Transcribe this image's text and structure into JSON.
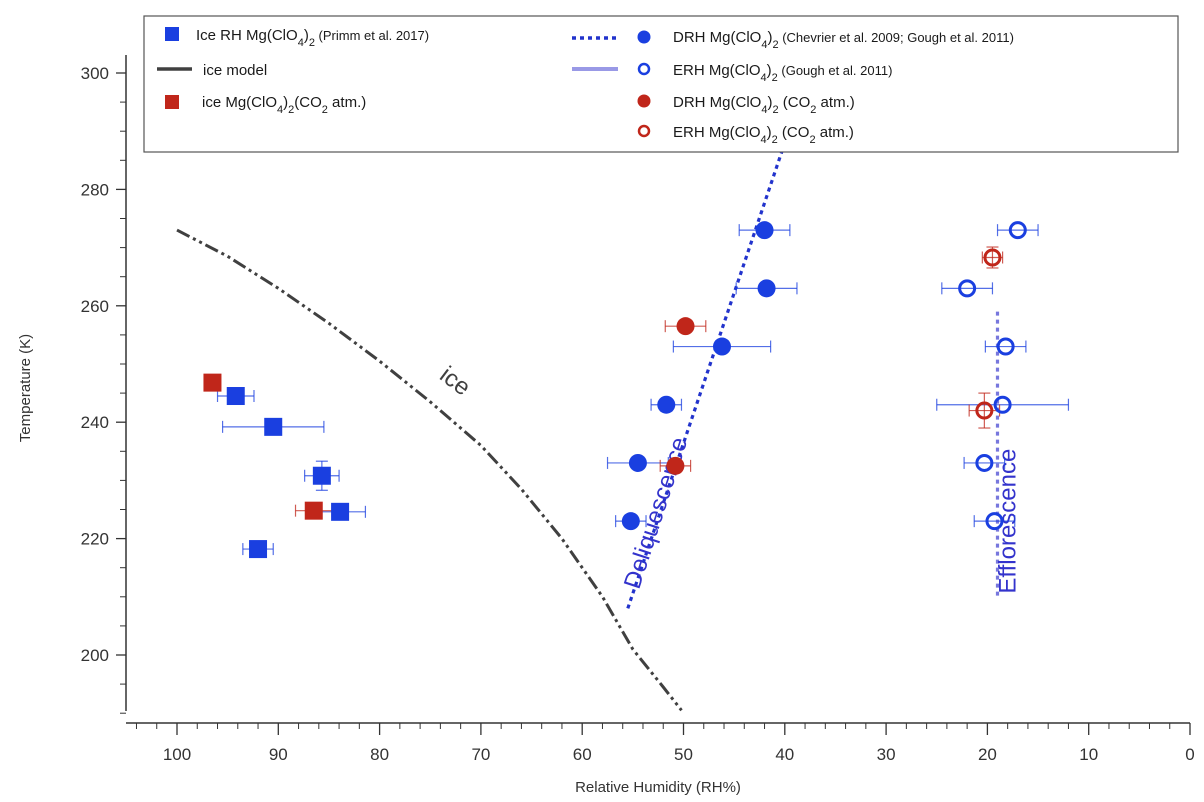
{
  "chart_data": {
    "type": "scatter",
    "xlabel": "Relative Humidity (RH%)",
    "ylabel": "Temperature (K)",
    "xlim": [
      105,
      0
    ],
    "ylim": [
      190,
      305
    ],
    "x_reversed": true,
    "x_ticks": [
      "100",
      "90",
      "80",
      "70",
      "60",
      "50",
      "40",
      "30",
      "20",
      "10",
      "0"
    ],
    "x_tick_values": [
      100,
      90,
      80,
      70,
      60,
      50,
      40,
      30,
      20,
      10,
      0
    ],
    "y_ticks": [
      "200",
      "220",
      "240",
      "260",
      "280",
      "300"
    ],
    "y_tick_values": [
      200,
      220,
      240,
      260,
      280,
      300
    ],
    "grid": false,
    "legend_placement": "top",
    "annotations": [
      {
        "text": "ice",
        "x": 73,
        "y": 246,
        "rotation": 37,
        "color": "#404040"
      },
      {
        "text": "Deliquescence",
        "x": 52,
        "y": 224,
        "rotation": -72,
        "color": "#3333cc"
      },
      {
        "text": "Efflorescence",
        "x": 17.2,
        "y": 223,
        "rotation": -90,
        "color": "#3333cc"
      }
    ],
    "series": [
      {
        "name": "Ice RH Mg(ClO4)2 (Primm et al. 2017)",
        "legend_main": "Ice RH Mg(ClO",
        "legend_rest": ")",
        "legend_ref": "(Primm et al. 2017)",
        "marker": "square",
        "filled": true,
        "color": "#1a3fe0",
        "points": [
          {
            "x": 94.2,
            "y": 244.5,
            "xerr": 1.8,
            "yerr": 0
          },
          {
            "x": 90.5,
            "y": 239.2,
            "xerr": 5,
            "yerr": 0
          },
          {
            "x": 85.7,
            "y": 230.8,
            "xerr": 1.7,
            "yerr": 2.5
          },
          {
            "x": 83.9,
            "y": 224.6,
            "xerr": 2.5,
            "yerr": 0
          },
          {
            "x": 92.0,
            "y": 218.2,
            "xerr": 1.5,
            "yerr": 0
          }
        ]
      },
      {
        "name": "ice model",
        "legend_main": "ice model",
        "legend_rest": "",
        "legend_ref": "",
        "type": "line",
        "style": "dash-dot-dot",
        "color": "#404040",
        "points": [
          {
            "x": 100,
            "y": 273
          },
          {
            "x": 95,
            "y": 268.5
          },
          {
            "x": 90,
            "y": 263
          },
          {
            "x": 85,
            "y": 257
          },
          {
            "x": 80,
            "y": 250.5
          },
          {
            "x": 75,
            "y": 243.5
          },
          {
            "x": 70,
            "y": 236
          },
          {
            "x": 66,
            "y": 228.5
          },
          {
            "x": 62,
            "y": 220
          },
          {
            "x": 58,
            "y": 210
          },
          {
            "x": 55,
            "y": 201
          },
          {
            "x": 52,
            "y": 194.5
          },
          {
            "x": 50.2,
            "y": 190.5
          }
        ]
      },
      {
        "name": "ice Mg(ClO4)2(CO2 atm.)",
        "legend_main": "ice Mg(ClO",
        "legend_rest": "(CO",
        "legend_ref": "",
        "marker": "square",
        "filled": true,
        "color": "#c0261a",
        "points": [
          {
            "x": 96.5,
            "y": 246.8,
            "xerr": 0.8,
            "yerr": 0
          },
          {
            "x": 86.5,
            "y": 224.8,
            "xerr": 1.8,
            "yerr": 0
          }
        ]
      },
      {
        "name": "DRH Mg(ClO4)2 (Chevrier et al. 2009; Gough et al. 2011)",
        "legend_main": "DRH Mg(ClO",
        "legend_rest": ")",
        "legend_ref": "(Chevrier et al. 2009; Gough et al. 2011)",
        "marker": "circle",
        "filled": true,
        "color": "#1a3fe0",
        "points": [
          {
            "x": 42.0,
            "y": 273.0,
            "xerr": 2.5,
            "yerr": 0
          },
          {
            "x": 41.8,
            "y": 263.0,
            "xerr": 3.0,
            "yerr": 0
          },
          {
            "x": 46.2,
            "y": 253.0,
            "xerr": 4.8,
            "yerr": 0
          },
          {
            "x": 51.7,
            "y": 243.0,
            "xerr": 1.5,
            "yerr": 0
          },
          {
            "x": 54.5,
            "y": 233.0,
            "xerr": 3.0,
            "yerr": 0
          },
          {
            "x": 55.2,
            "y": 223.0,
            "xerr": 1.5,
            "yerr": 0
          }
        ]
      },
      {
        "name": "ERH Mg(ClO4)2 (Gough et al. 2011)",
        "legend_main": "ERH Mg(ClO",
        "legend_rest": ")",
        "legend_ref": "(Gough et al. 2011)",
        "marker": "circle",
        "filled": false,
        "color": "#1a3fe0",
        "points": [
          {
            "x": 17.0,
            "y": 273.0,
            "xerr": 2.0,
            "yerr": 0
          },
          {
            "x": 22.0,
            "y": 263.0,
            "xerr": 2.5,
            "yerr": 0
          },
          {
            "x": 18.2,
            "y": 253.0,
            "xerr": 2.0,
            "yerr": 0
          },
          {
            "x": 18.5,
            "y": 243.0,
            "xerr": 6.5,
            "yerr": 0
          },
          {
            "x": 20.3,
            "y": 233.0,
            "xerr": 2.0,
            "yerr": 0
          },
          {
            "x": 19.3,
            "y": 223.0,
            "xerr": 2.0,
            "yerr": 0
          }
        ]
      },
      {
        "name": "DRH Mg(ClO4)2 (CO2 atm.)",
        "legend_main": "DRH Mg(ClO",
        "legend_rest": ")",
        "legend_ref": "(CO",
        "marker": "circle",
        "filled": true,
        "color": "#c0261a",
        "points": [
          {
            "x": 49.8,
            "y": 256.5,
            "xerr": 2.0,
            "yerr": 0
          },
          {
            "x": 50.8,
            "y": 232.5,
            "xerr": 1.5,
            "yerr": 0
          }
        ]
      },
      {
        "name": "ERH Mg(ClO4)2 (CO2 atm.)",
        "legend_main": "ERH Mg(ClO",
        "legend_rest": ")",
        "legend_ref": "(CO",
        "marker": "circle",
        "filled": false,
        "color": "#c0261a",
        "points": [
          {
            "x": 19.5,
            "y": 268.3,
            "xerr": 1.0,
            "yerr": 1.8
          },
          {
            "x": 20.3,
            "y": 242.0,
            "xerr": 1.5,
            "yerr": 3.0
          }
        ]
      },
      {
        "name": "Deliquescence trend",
        "type": "line",
        "style": "dotted",
        "color": "#2233cc",
        "points": [
          {
            "x": 55.5,
            "y": 208
          },
          {
            "x": 40,
            "y": 288
          }
        ]
      },
      {
        "name": "Efflorescence trend",
        "type": "line",
        "style": "dotted",
        "color": "#7777dd",
        "points": [
          {
            "x": 19.0,
            "y": 259
          },
          {
            "x": 19.0,
            "y": 210
          }
        ]
      }
    ]
  }
}
